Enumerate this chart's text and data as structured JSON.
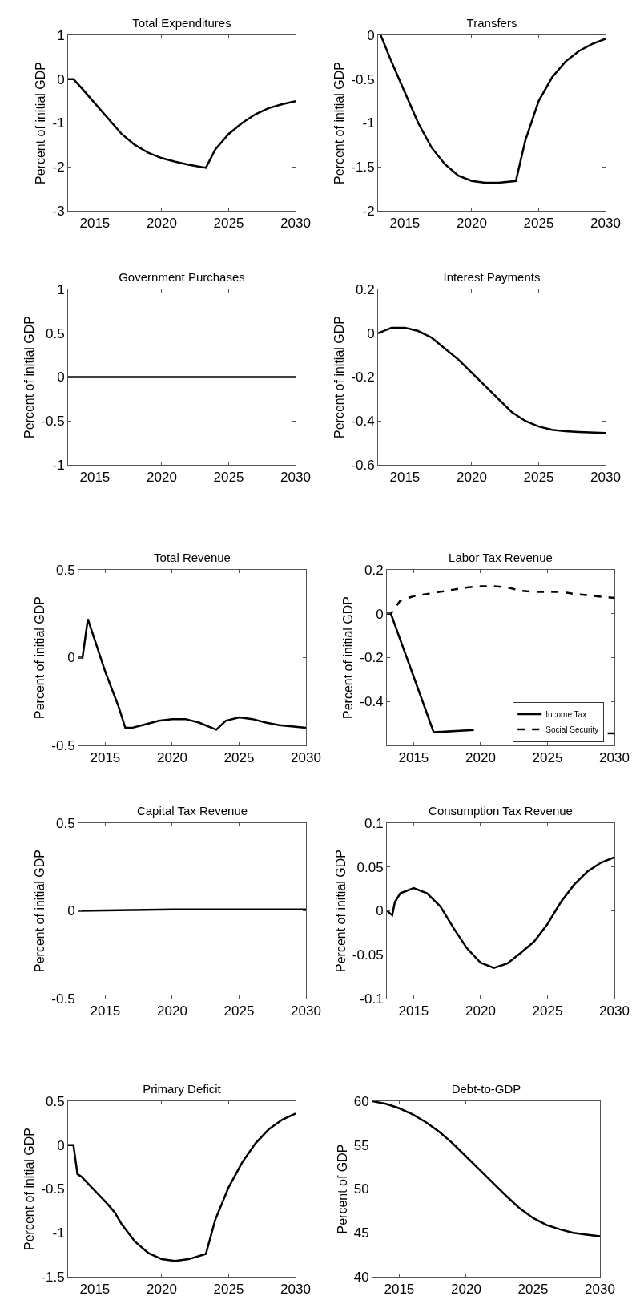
{
  "chart_data": [
    {
      "type": "line",
      "title": "Total Expenditures",
      "ylabel": "Percent of initial GDP",
      "xlim": [
        2013,
        2030
      ],
      "xticks": [
        2015,
        2020,
        2025,
        2030
      ],
      "ylim": [
        -3,
        1
      ],
      "yticks": [
        -3,
        -2,
        -1,
        0,
        1
      ],
      "grid": false,
      "legend": false,
      "line_style": "solid",
      "series": [
        {
          "color": "#000000",
          "x": [
            2013,
            2013.4,
            2014,
            2015,
            2016,
            2017,
            2018,
            2019,
            2020,
            2021,
            2022,
            2023.3,
            2024,
            2025,
            2026,
            2027,
            2028,
            2029,
            2030
          ],
          "values": [
            0,
            0,
            -0.2,
            -0.55,
            -0.9,
            -1.25,
            -1.5,
            -1.68,
            -1.8,
            -1.88,
            -1.95,
            -2.02,
            -1.6,
            -1.25,
            -1.0,
            -0.8,
            -0.66,
            -0.57,
            -0.5
          ]
        }
      ]
    },
    {
      "type": "line",
      "title": "Transfers",
      "ylabel": "Percent of initial GDP",
      "xlim": [
        2013,
        2030
      ],
      "xticks": [
        2015,
        2020,
        2025,
        2030
      ],
      "ylim": [
        -2,
        0
      ],
      "yticks": [
        -2,
        -1.5,
        -1,
        -0.5,
        0
      ],
      "grid": false,
      "legend": false,
      "line_style": "solid",
      "series": [
        {
          "color": "#000000",
          "x": [
            2013.2,
            2014,
            2015,
            2016,
            2017,
            2018,
            2019,
            2020,
            2021,
            2022,
            2023.3,
            2024,
            2025,
            2026,
            2027,
            2028,
            2029,
            2030
          ],
          "values": [
            0,
            -0.3,
            -0.65,
            -1.0,
            -1.28,
            -1.47,
            -1.6,
            -1.66,
            -1.68,
            -1.68,
            -1.66,
            -1.2,
            -0.75,
            -0.48,
            -0.3,
            -0.18,
            -0.1,
            -0.04
          ]
        }
      ]
    },
    {
      "type": "line",
      "title": "Government Purchases",
      "ylabel": "Percent of initial GDP",
      "xlim": [
        2013,
        2030
      ],
      "xticks": [
        2015,
        2020,
        2025,
        2030
      ],
      "ylim": [
        -1,
        1
      ],
      "yticks": [
        -1,
        -0.5,
        0,
        0.5,
        1
      ],
      "grid": false,
      "legend": false,
      "line_style": "solid",
      "series": [
        {
          "color": "#000000",
          "x": [
            2013,
            2030
          ],
          "values": [
            0,
            0
          ]
        }
      ]
    },
    {
      "type": "line",
      "title": "Interest Payments",
      "ylabel": "Percent of initial GDP",
      "xlim": [
        2013,
        2030
      ],
      "xticks": [
        2015,
        2020,
        2025,
        2030
      ],
      "ylim": [
        -0.6,
        0.2
      ],
      "yticks": [
        -0.6,
        -0.4,
        -0.2,
        0,
        0.2
      ],
      "grid": false,
      "legend": false,
      "line_style": "solid",
      "series": [
        {
          "color": "#000000",
          "x": [
            2013,
            2014,
            2015,
            2016,
            2017,
            2018,
            2019,
            2020,
            2021,
            2022,
            2023,
            2024,
            2025,
            2026,
            2027,
            2028,
            2030
          ],
          "values": [
            0,
            0.025,
            0.025,
            0.01,
            -0.02,
            -0.07,
            -0.12,
            -0.18,
            -0.24,
            -0.3,
            -0.36,
            -0.4,
            -0.425,
            -0.44,
            -0.447,
            -0.45,
            -0.455
          ]
        }
      ]
    },
    {
      "type": "line",
      "title": "Total Revenue",
      "ylabel": "Percent of initial GDP",
      "xlim": [
        2013,
        2030
      ],
      "xticks": [
        2015,
        2020,
        2025,
        2030
      ],
      "ylim": [
        -0.5,
        0.5
      ],
      "yticks": [
        -0.5,
        0,
        0.5
      ],
      "grid": false,
      "legend": false,
      "line_style": "solid",
      "series": [
        {
          "color": "#000000",
          "x": [
            2013,
            2013.3,
            2013.7,
            2014,
            2015,
            2016,
            2016.5,
            2017,
            2018,
            2019,
            2020,
            2021,
            2022,
            2023.3,
            2024,
            2025,
            2026,
            2027,
            2028,
            2030
          ],
          "values": [
            0,
            0,
            0.22,
            0.15,
            -0.08,
            -0.28,
            -0.4,
            -0.4,
            -0.38,
            -0.36,
            -0.35,
            -0.35,
            -0.37,
            -0.41,
            -0.36,
            -0.34,
            -0.35,
            -0.37,
            -0.385,
            -0.4
          ]
        }
      ]
    },
    {
      "type": "line",
      "title": "Labor Tax Revenue",
      "ylabel": "Percent of initial GDP",
      "xlim": [
        2013,
        2030
      ],
      "xticks": [
        2015,
        2020,
        2025,
        2030
      ],
      "ylim": [
        -0.6,
        0.2
      ],
      "yticks": [
        -0.4,
        -0.2,
        0,
        0.2
      ],
      "grid": false,
      "legend": "bottom right",
      "series": [
        {
          "name": "Income Tax",
          "color": "#000000",
          "line_style": "solid",
          "x": [
            2013,
            2013.3,
            2016.5,
            2019.5,
            2025,
            2029.5,
            2030
          ],
          "values": [
            0,
            0,
            -0.54,
            -0.53,
            null,
            -0.545,
            -0.545
          ]
        },
        {
          "name": "Social Security",
          "color": "#000000",
          "line_style": "dashed",
          "x": [
            2013,
            2013.3,
            2014,
            2015,
            2016,
            2017,
            2018,
            2019,
            2020,
            2021,
            2022,
            2023,
            2024,
            2025,
            2026,
            2027,
            2028,
            2029,
            2030
          ],
          "values": [
            0,
            0,
            0.06,
            0.08,
            0.09,
            0.1,
            0.11,
            0.12,
            0.125,
            0.125,
            0.12,
            0.105,
            0.1,
            0.1,
            0.1,
            0.09,
            0.085,
            0.078,
            0.072
          ]
        }
      ]
    },
    {
      "type": "line",
      "title": "Capital Tax Revenue",
      "ylabel": "Percent of initial GDP",
      "xlim": [
        2013,
        2030
      ],
      "xticks": [
        2015,
        2020,
        2025,
        2030
      ],
      "ylim": [
        -0.5,
        0.5
      ],
      "yticks": [
        -0.5,
        0,
        0.5
      ],
      "grid": false,
      "legend": false,
      "line_style": "solid",
      "series": [
        {
          "color": "#000000",
          "x": [
            2013,
            2020,
            2030
          ],
          "values": [
            0,
            0.008,
            0.008
          ]
        }
      ]
    },
    {
      "type": "line",
      "title": "Consumption Tax Revenue",
      "ylabel": "Percent of initial GDP",
      "xlim": [
        2013,
        2030
      ],
      "xticks": [
        2015,
        2020,
        2025,
        2030
      ],
      "ylim": [
        -0.1,
        0.1
      ],
      "yticks": [
        -0.1,
        -0.05,
        0,
        0.05,
        0.1
      ],
      "grid": false,
      "legend": false,
      "line_style": "solid",
      "series": [
        {
          "color": "#000000",
          "x": [
            2013,
            2013.4,
            2013.6,
            2014,
            2015,
            2016,
            2017,
            2018,
            2019,
            2020,
            2021,
            2022,
            2023,
            2024,
            2025,
            2026,
            2027,
            2028,
            2029,
            2030
          ],
          "values": [
            0,
            -0.005,
            0.01,
            0.02,
            0.026,
            0.02,
            0.005,
            -0.02,
            -0.043,
            -0.059,
            -0.065,
            -0.06,
            -0.048,
            -0.035,
            -0.015,
            0.01,
            0.03,
            0.045,
            0.055,
            0.061
          ]
        }
      ]
    },
    {
      "type": "line",
      "title": "Primary Deficit",
      "ylabel": "Percent of initial GDP",
      "xlim": [
        2013,
        2030
      ],
      "xticks": [
        2015,
        2020,
        2025,
        2030
      ],
      "ylim": [
        -1.5,
        0.5
      ],
      "yticks": [
        -1.5,
        -1,
        -0.5,
        0,
        0.5
      ],
      "grid": false,
      "legend": false,
      "line_style": "solid",
      "series": [
        {
          "color": "#000000",
          "x": [
            2013,
            2013.4,
            2013.7,
            2014,
            2015,
            2016,
            2016.5,
            2017,
            2018,
            2019,
            2020,
            2021,
            2022,
            2023.3,
            2024,
            2025,
            2026,
            2027,
            2028,
            2029,
            2030
          ],
          "values": [
            0,
            0,
            -0.33,
            -0.36,
            -0.52,
            -0.68,
            -0.77,
            -0.9,
            -1.1,
            -1.23,
            -1.3,
            -1.32,
            -1.3,
            -1.24,
            -0.85,
            -0.48,
            -0.2,
            0.02,
            0.18,
            0.29,
            0.36
          ]
        }
      ]
    },
    {
      "type": "line",
      "title": "Debt-to-GDP",
      "ylabel": "Percent of GDP",
      "xlim": [
        2013,
        2030
      ],
      "xticks": [
        2015,
        2020,
        2025,
        2030
      ],
      "ylim": [
        40,
        60
      ],
      "yticks": [
        40,
        45,
        50,
        55,
        60
      ],
      "grid": false,
      "legend": false,
      "line_style": "solid",
      "series": [
        {
          "color": "#000000",
          "x": [
            2013,
            2014,
            2015,
            2016,
            2017,
            2018,
            2019,
            2020,
            2021,
            2022,
            2023,
            2024,
            2025,
            2026,
            2027,
            2028,
            2029,
            2030
          ],
          "values": [
            60,
            59.7,
            59.2,
            58.5,
            57.6,
            56.5,
            55.2,
            53.7,
            52.2,
            50.7,
            49.2,
            47.8,
            46.7,
            45.9,
            45.4,
            45,
            44.8,
            44.6
          ]
        }
      ]
    }
  ]
}
